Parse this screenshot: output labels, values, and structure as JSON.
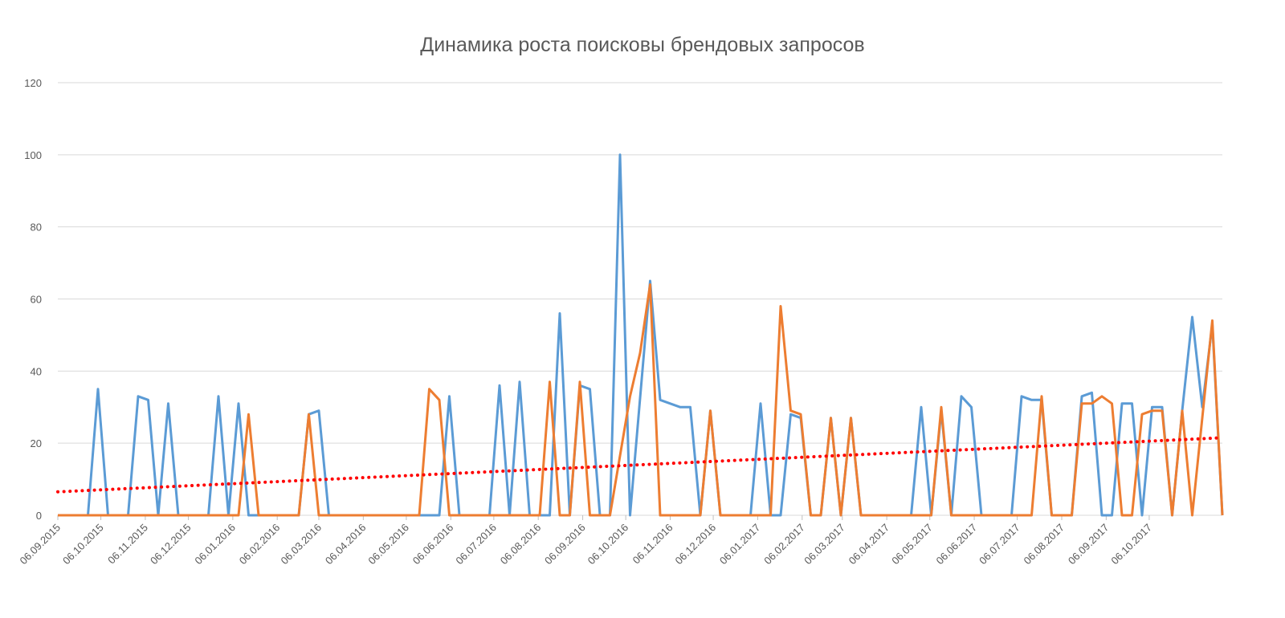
{
  "chart_data": {
    "type": "line",
    "title": "Динамика роста поисковы брендовых запросов",
    "xlabel": "",
    "ylabel": "",
    "ylim": [
      0,
      120
    ],
    "yticks": [
      0,
      20,
      40,
      60,
      80,
      100,
      120
    ],
    "x_tick_labels": [
      "06.09.2015",
      "06.10.2015",
      "06.11.2015",
      "06.12.2015",
      "06.01.2016",
      "06.02.2016",
      "06.03.2016",
      "06.04.2016",
      "06.05.2016",
      "06.06.2016",
      "06.07.2016",
      "06.08.2016",
      "06.09.2016",
      "06.10.2016",
      "06.11.2016",
      "06.12.2016",
      "06.01.2017",
      "06.02.2017",
      "06.03.2017",
      "06.04.2017",
      "06.05.2017",
      "06.06.2017",
      "06.07.2017",
      "06.08.2017",
      "06.09.2017",
      "06.10.2017"
    ],
    "x_start": "2015-09-06",
    "x_end": "2017-11-05",
    "grid": true,
    "legend": "none",
    "series": [
      {
        "color": "#5B9BD5",
        "points": [
          [
            "2015-09-06",
            0
          ],
          [
            "2015-09-27",
            0
          ],
          [
            "2015-10-04",
            35
          ],
          [
            "2015-10-11",
            0
          ],
          [
            "2015-10-25",
            0
          ],
          [
            "2015-11-01",
            33
          ],
          [
            "2015-11-08",
            32
          ],
          [
            "2015-11-15",
            0
          ],
          [
            "2015-11-22",
            31
          ],
          [
            "2015-11-29",
            0
          ],
          [
            "2015-12-20",
            0
          ],
          [
            "2015-12-27",
            33
          ],
          [
            "2016-01-03",
            0
          ],
          [
            "2016-01-10",
            31
          ],
          [
            "2016-01-17",
            0
          ],
          [
            "2016-02-14",
            0
          ],
          [
            "2016-02-21",
            0
          ],
          [
            "2016-02-28",
            28
          ],
          [
            "2016-03-06",
            29
          ],
          [
            "2016-03-13",
            0
          ],
          [
            "2016-05-29",
            0
          ],
          [
            "2016-06-05",
            33
          ],
          [
            "2016-06-12",
            0
          ],
          [
            "2016-07-03",
            0
          ],
          [
            "2016-07-10",
            36
          ],
          [
            "2016-07-17",
            0
          ],
          [
            "2016-07-24",
            37
          ],
          [
            "2016-07-31",
            0
          ],
          [
            "2016-08-14",
            0
          ],
          [
            "2016-08-21",
            56
          ],
          [
            "2016-08-28",
            0
          ],
          [
            "2016-09-04",
            36
          ],
          [
            "2016-09-11",
            35
          ],
          [
            "2016-09-18",
            0
          ],
          [
            "2016-09-25",
            0
          ],
          [
            "2016-10-02",
            100
          ],
          [
            "2016-10-09",
            0
          ],
          [
            "2016-10-23",
            65
          ],
          [
            "2016-10-30",
            32
          ],
          [
            "2016-11-13",
            30
          ],
          [
            "2016-11-20",
            30
          ],
          [
            "2016-11-27",
            0
          ],
          [
            "2016-12-04",
            29
          ],
          [
            "2016-12-11",
            0
          ],
          [
            "2017-01-01",
            0
          ],
          [
            "2017-01-08",
            31
          ],
          [
            "2017-01-15",
            0
          ],
          [
            "2017-01-22",
            0
          ],
          [
            "2017-01-29",
            28
          ],
          [
            "2017-02-05",
            27
          ],
          [
            "2017-02-12",
            0
          ],
          [
            "2017-02-19",
            0
          ],
          [
            "2017-02-26",
            27
          ],
          [
            "2017-03-05",
            0
          ],
          [
            "2017-03-12",
            27
          ],
          [
            "2017-03-19",
            0
          ],
          [
            "2017-04-23",
            0
          ],
          [
            "2017-04-30",
            30
          ],
          [
            "2017-05-07",
            0
          ],
          [
            "2017-05-14",
            29
          ],
          [
            "2017-05-21",
            0
          ],
          [
            "2017-05-28",
            33
          ],
          [
            "2017-06-04",
            30
          ],
          [
            "2017-06-11",
            0
          ],
          [
            "2017-07-02",
            0
          ],
          [
            "2017-07-09",
            33
          ],
          [
            "2017-07-16",
            32
          ],
          [
            "2017-07-23",
            32
          ],
          [
            "2017-07-30",
            0
          ],
          [
            "2017-08-13",
            0
          ],
          [
            "2017-08-20",
            33
          ],
          [
            "2017-08-27",
            34
          ],
          [
            "2017-09-03",
            0
          ],
          [
            "2017-09-10",
            0
          ],
          [
            "2017-09-17",
            31
          ],
          [
            "2017-09-24",
            31
          ],
          [
            "2017-10-01",
            0
          ],
          [
            "2017-10-08",
            30
          ],
          [
            "2017-10-15",
            30
          ],
          [
            "2017-10-22",
            0
          ],
          [
            "2017-10-29",
            29
          ],
          [
            "2017-11-05",
            55
          ],
          [
            "2017-11-12",
            30
          ],
          [
            "2017-11-19",
            53
          ],
          [
            "2017-11-26",
            0
          ]
        ]
      },
      {
        "color": "#ED7D31",
        "points": [
          [
            "2015-09-06",
            0
          ],
          [
            "2016-01-10",
            0
          ],
          [
            "2016-01-17",
            28
          ],
          [
            "2016-01-24",
            0
          ],
          [
            "2016-02-21",
            0
          ],
          [
            "2016-02-28",
            28
          ],
          [
            "2016-03-06",
            0
          ],
          [
            "2016-05-15",
            0
          ],
          [
            "2016-05-22",
            35
          ],
          [
            "2016-05-29",
            32
          ],
          [
            "2016-06-05",
            0
          ],
          [
            "2016-08-07",
            0
          ],
          [
            "2016-08-14",
            37
          ],
          [
            "2016-08-21",
            0
          ],
          [
            "2016-08-28",
            0
          ],
          [
            "2016-09-04",
            37
          ],
          [
            "2016-09-11",
            0
          ],
          [
            "2016-09-25",
            0
          ],
          [
            "2016-10-09",
            33
          ],
          [
            "2016-10-16",
            45
          ],
          [
            "2016-10-23",
            64
          ],
          [
            "2016-10-30",
            0
          ],
          [
            "2016-11-27",
            0
          ],
          [
            "2016-12-04",
            29
          ],
          [
            "2016-12-11",
            0
          ],
          [
            "2017-01-15",
            0
          ],
          [
            "2017-01-22",
            58
          ],
          [
            "2017-01-29",
            29
          ],
          [
            "2017-02-05",
            28
          ],
          [
            "2017-02-12",
            0
          ],
          [
            "2017-02-19",
            0
          ],
          [
            "2017-02-26",
            27
          ],
          [
            "2017-03-05",
            0
          ],
          [
            "2017-03-12",
            27
          ],
          [
            "2017-03-19",
            0
          ],
          [
            "2017-05-07",
            0
          ],
          [
            "2017-05-14",
            30
          ],
          [
            "2017-05-21",
            0
          ],
          [
            "2017-07-16",
            0
          ],
          [
            "2017-07-23",
            33
          ],
          [
            "2017-07-30",
            0
          ],
          [
            "2017-08-13",
            0
          ],
          [
            "2017-08-20",
            31
          ],
          [
            "2017-08-27",
            31
          ],
          [
            "2017-09-03",
            33
          ],
          [
            "2017-09-10",
            31
          ],
          [
            "2017-09-17",
            0
          ],
          [
            "2017-09-24",
            0
          ],
          [
            "2017-10-01",
            28
          ],
          [
            "2017-10-08",
            29
          ],
          [
            "2017-10-15",
            29
          ],
          [
            "2017-10-22",
            0
          ],
          [
            "2017-10-29",
            29
          ],
          [
            "2017-11-05",
            0
          ],
          [
            "2017-11-12",
            27
          ],
          [
            "2017-11-19",
            54
          ],
          [
            "2017-11-26",
            0
          ]
        ]
      }
    ],
    "trendline": {
      "color": "#FF0000",
      "style": "dotted",
      "points": [
        [
          "2015-09-06",
          6.5
        ],
        [
          "2017-11-26",
          21.5
        ]
      ]
    }
  }
}
